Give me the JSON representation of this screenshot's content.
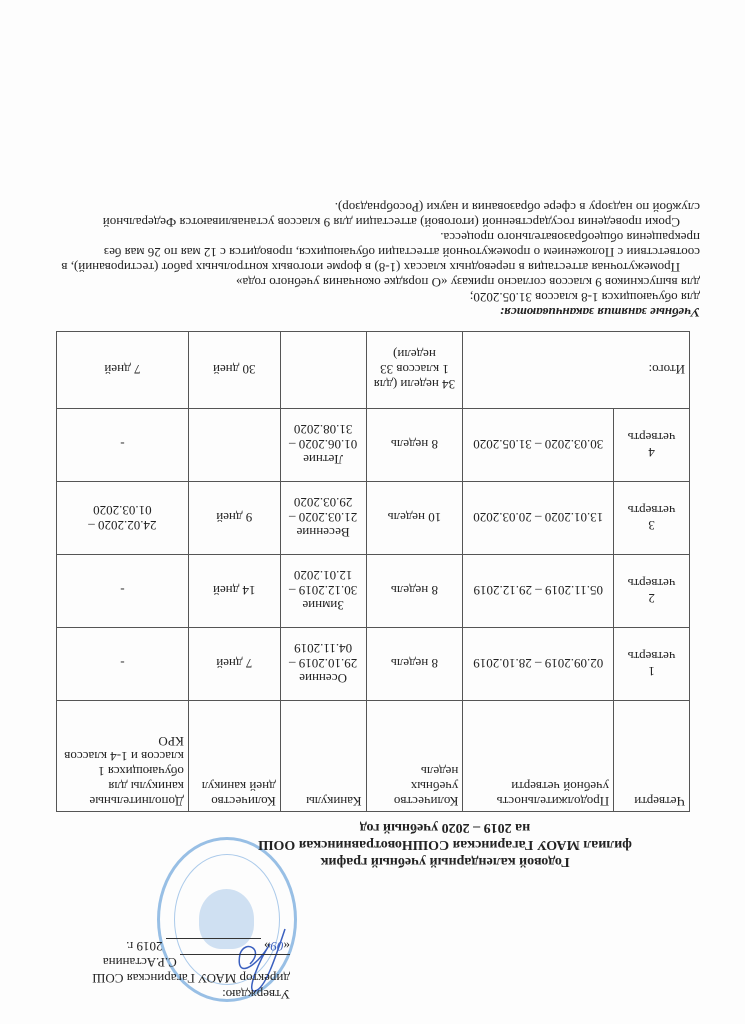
{
  "approval": {
    "label": "Утверждаю:",
    "position": "директор МАОУ Гагаринская СОШ",
    "name": "С.Р.Астанина",
    "date_open": "«",
    "date_day": "09",
    "date_close": "»",
    "year": "2019 г."
  },
  "title": {
    "line1": "Годовой календарный учебный график",
    "line2": "филиал МАОУ Гагаринская СОШНовотравнинская ООШ",
    "line3": "на 2019 – 2020 учебный год"
  },
  "table": {
    "headers": [
      "Четверти",
      "Продолжительность учебной четверти",
      "Количество учебных недель",
      "Каникулы",
      "Количество дней каникул",
      "Дополнительные каникулы для обучающихся 1 классов и 1-4 классов КРО"
    ],
    "rows": [
      {
        "num": "1",
        "quarter": "четверть",
        "duration": "02.09.2019 – 28.10.2019",
        "weeks": "8 недель",
        "holiday_name": "Осенние",
        "holiday_dates": "29.10.2019 – 04.11.2019",
        "days": "7 дней",
        "extra": "-"
      },
      {
        "num": "2",
        "quarter": "четверть",
        "duration": "05.11.2019 – 29.12.2019",
        "weeks": "8 недель",
        "holiday_name": "Зимние",
        "holiday_dates": "30.12.2019 – 12.01.2020",
        "days": "14 дней",
        "extra": "-"
      },
      {
        "num": "3",
        "quarter": "четверть",
        "duration": "13.01.2020 – 20.03.2020",
        "weeks": "10 недель",
        "holiday_name": "Весенние",
        "holiday_dates": "21.03.2020 – 29.03.2020",
        "days": "9 дней",
        "extra": "24.02.2020 – 01.03.2020"
      },
      {
        "num": "4",
        "quarter": "четверть",
        "duration": "30.03.2020 – 31.05.2020",
        "weeks": "8 недель",
        "holiday_name": "Летние",
        "holiday_dates": "01.06.2020 – 31.08.2020",
        "days": "",
        "extra": "-"
      }
    ],
    "total": {
      "label": "Итого:",
      "weeks": "34 недели (для 1 классов 33 недели)",
      "holidays": "",
      "days": "30 дней",
      "extra": "7 дней"
    }
  },
  "notes": {
    "heading": "Учебные занятия заканчиваются:",
    "line1": "для обучающихся 1-8 классов 31.05.2020;",
    "line2": "для выпускников 9 классов согласно приказу «О порядке окончания учебного года»",
    "para1": "Промежуточная аттестация в переводных классах (1-8) в форме итоговых контрольных работ (тестирований), в соответствии с Положением о промежуточной аттестации обучающихся, проводится с 12 мая по 26 мая без прекращения общеобразовательного процесса.",
    "para2": "Сроки проведения государственной (итоговой) аттестации для 9 классов устанавливаются Федеральной службой по надзору в сфере образования и науки (Рособрнадзор)."
  },
  "colors": {
    "stamp": "#468cd2",
    "ink": "#222222"
  }
}
